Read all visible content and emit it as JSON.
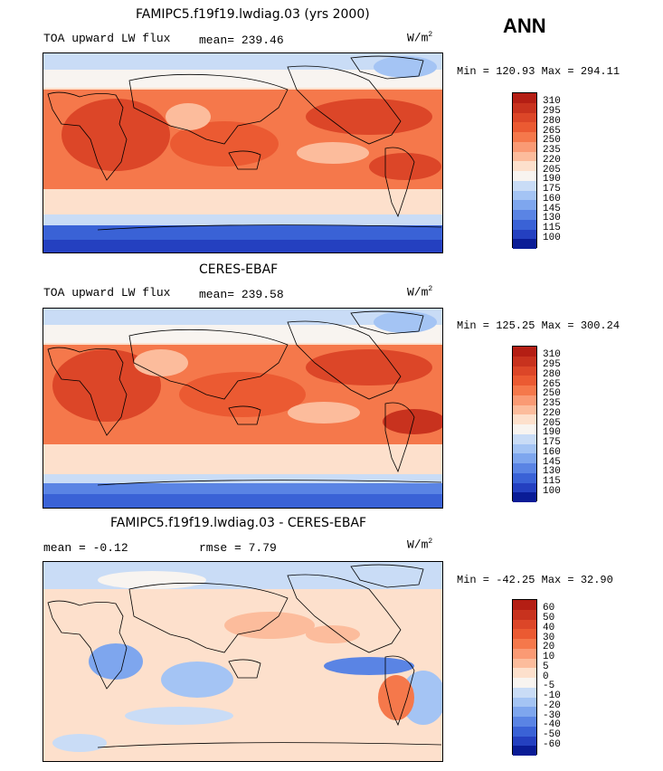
{
  "season_label": "ANN",
  "panels": [
    {
      "title": "FAMIPC5.f19f19.lwdiag.03 (yrs 2000)",
      "left_label": "TOA upward LW flux",
      "stat_label": "mean=",
      "stat_value": "239.46",
      "stat2_label": "",
      "stat2_value": "",
      "units": "W/m",
      "units_sup": "2",
      "minmax": "Min = 120.93 Max = 294.11",
      "colorbar_labels": [
        "310",
        "295",
        "280",
        "265",
        "250",
        "235",
        "220",
        "205",
        "190",
        "175",
        "160",
        "145",
        "130",
        "115",
        "100"
      ],
      "colorbar_colors": [
        "#b41e14",
        "#c8321e",
        "#dc4628",
        "#eb5a32",
        "#f5784b",
        "#fa9a74",
        "#fcbc9c",
        "#fde0cc",
        "#f8f4f0",
        "#c9dcf6",
        "#a4c4f4",
        "#7ea6ee",
        "#5a84e4",
        "#3a62d6",
        "#2440c0",
        "#0a1c96"
      ]
    },
    {
      "title": "CERES-EBAF",
      "left_label": "TOA upward LW flux",
      "stat_label": "mean=",
      "stat_value": "239.58",
      "stat2_label": "",
      "stat2_value": "",
      "units": "W/m",
      "units_sup": "2",
      "minmax": "Min = 125.25 Max = 300.24",
      "colorbar_labels": [
        "310",
        "295",
        "280",
        "265",
        "250",
        "235",
        "220",
        "205",
        "190",
        "175",
        "160",
        "145",
        "130",
        "115",
        "100"
      ],
      "colorbar_colors": [
        "#b41e14",
        "#c8321e",
        "#dc4628",
        "#eb5a32",
        "#f5784b",
        "#fa9a74",
        "#fcbc9c",
        "#fde0cc",
        "#f8f4f0",
        "#c9dcf6",
        "#a4c4f4",
        "#7ea6ee",
        "#5a84e4",
        "#3a62d6",
        "#2440c0",
        "#0a1c96"
      ]
    },
    {
      "title": "FAMIPC5.f19f19.lwdiag.03 - CERES-EBAF",
      "left_label": "",
      "stat_label": "mean =",
      "stat_value": "-0.12",
      "stat2_label": "rmse =",
      "stat2_value": "7.79",
      "units": "W/m",
      "units_sup": "2",
      "minmax": "Min = -42.25 Max = 32.90",
      "colorbar_labels": [
        "60",
        "50",
        "40",
        "30",
        "20",
        "10",
        "5",
        "0",
        "-5",
        "-10",
        "-20",
        "-30",
        "-40",
        "-50",
        "-60"
      ],
      "colorbar_colors": [
        "#b41e14",
        "#c8321e",
        "#dc4628",
        "#eb5a32",
        "#f5784b",
        "#fa9a74",
        "#fcbc9c",
        "#fde0cc",
        "#f8f4f0",
        "#c9dcf6",
        "#a4c4f4",
        "#7ea6ee",
        "#5a84e4",
        "#3a62d6",
        "#2440c0",
        "#0a1c96"
      ]
    }
  ]
}
